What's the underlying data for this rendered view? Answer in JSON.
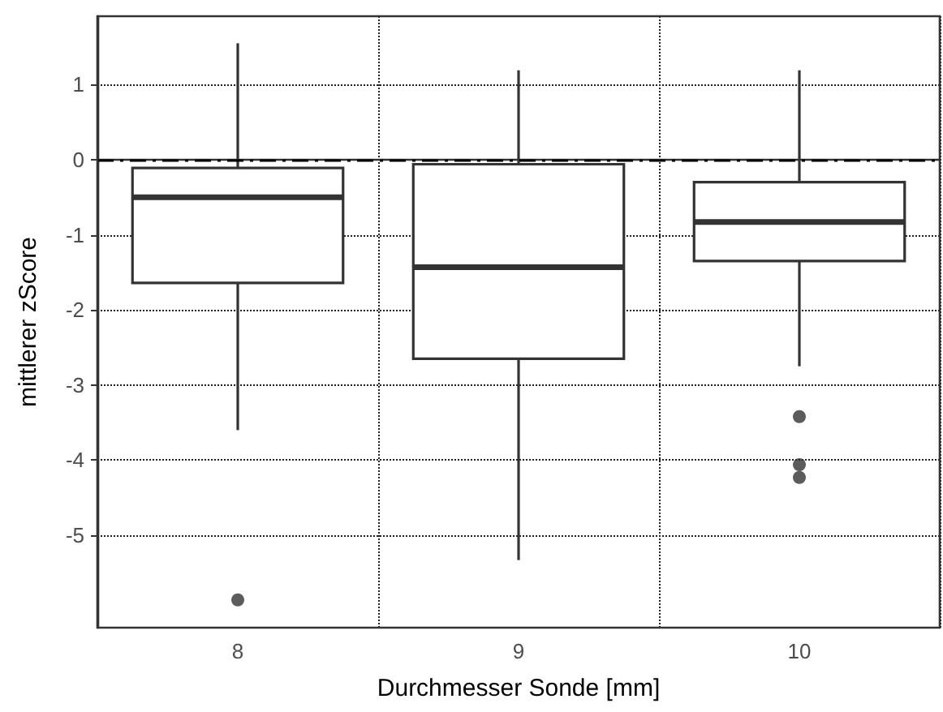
{
  "chart_data": {
    "type": "box",
    "xlabel": "Durchmesser Sonde [mm]",
    "ylabel": "mittlerer zScore",
    "categories": [
      "8",
      "9",
      "10"
    ],
    "boxes": [
      {
        "low": -3.6,
        "q1": -1.64,
        "median": -0.5,
        "q3": -0.11,
        "high": 1.55,
        "outliers": [
          -5.86
        ]
      },
      {
        "low": -5.33,
        "q1": -2.65,
        "median": -1.43,
        "q3": -0.06,
        "high": 1.19
      },
      {
        "low": -2.75,
        "q1": -1.35,
        "median": -0.83,
        "q3": -0.3,
        "high": 1.19,
        "outliers": [
          -3.42,
          -4.06,
          -4.23
        ]
      }
    ],
    "color": "#333333",
    "ylim": [
      -6.23,
      1.91
    ],
    "yticks": [
      -5,
      -4,
      -3,
      -2,
      -1,
      0,
      1
    ],
    "grid": true,
    "ref_lines": [
      {
        "axis": "y",
        "value": 0,
        "color": "#000000",
        "line_style": "dashed"
      }
    ]
  }
}
